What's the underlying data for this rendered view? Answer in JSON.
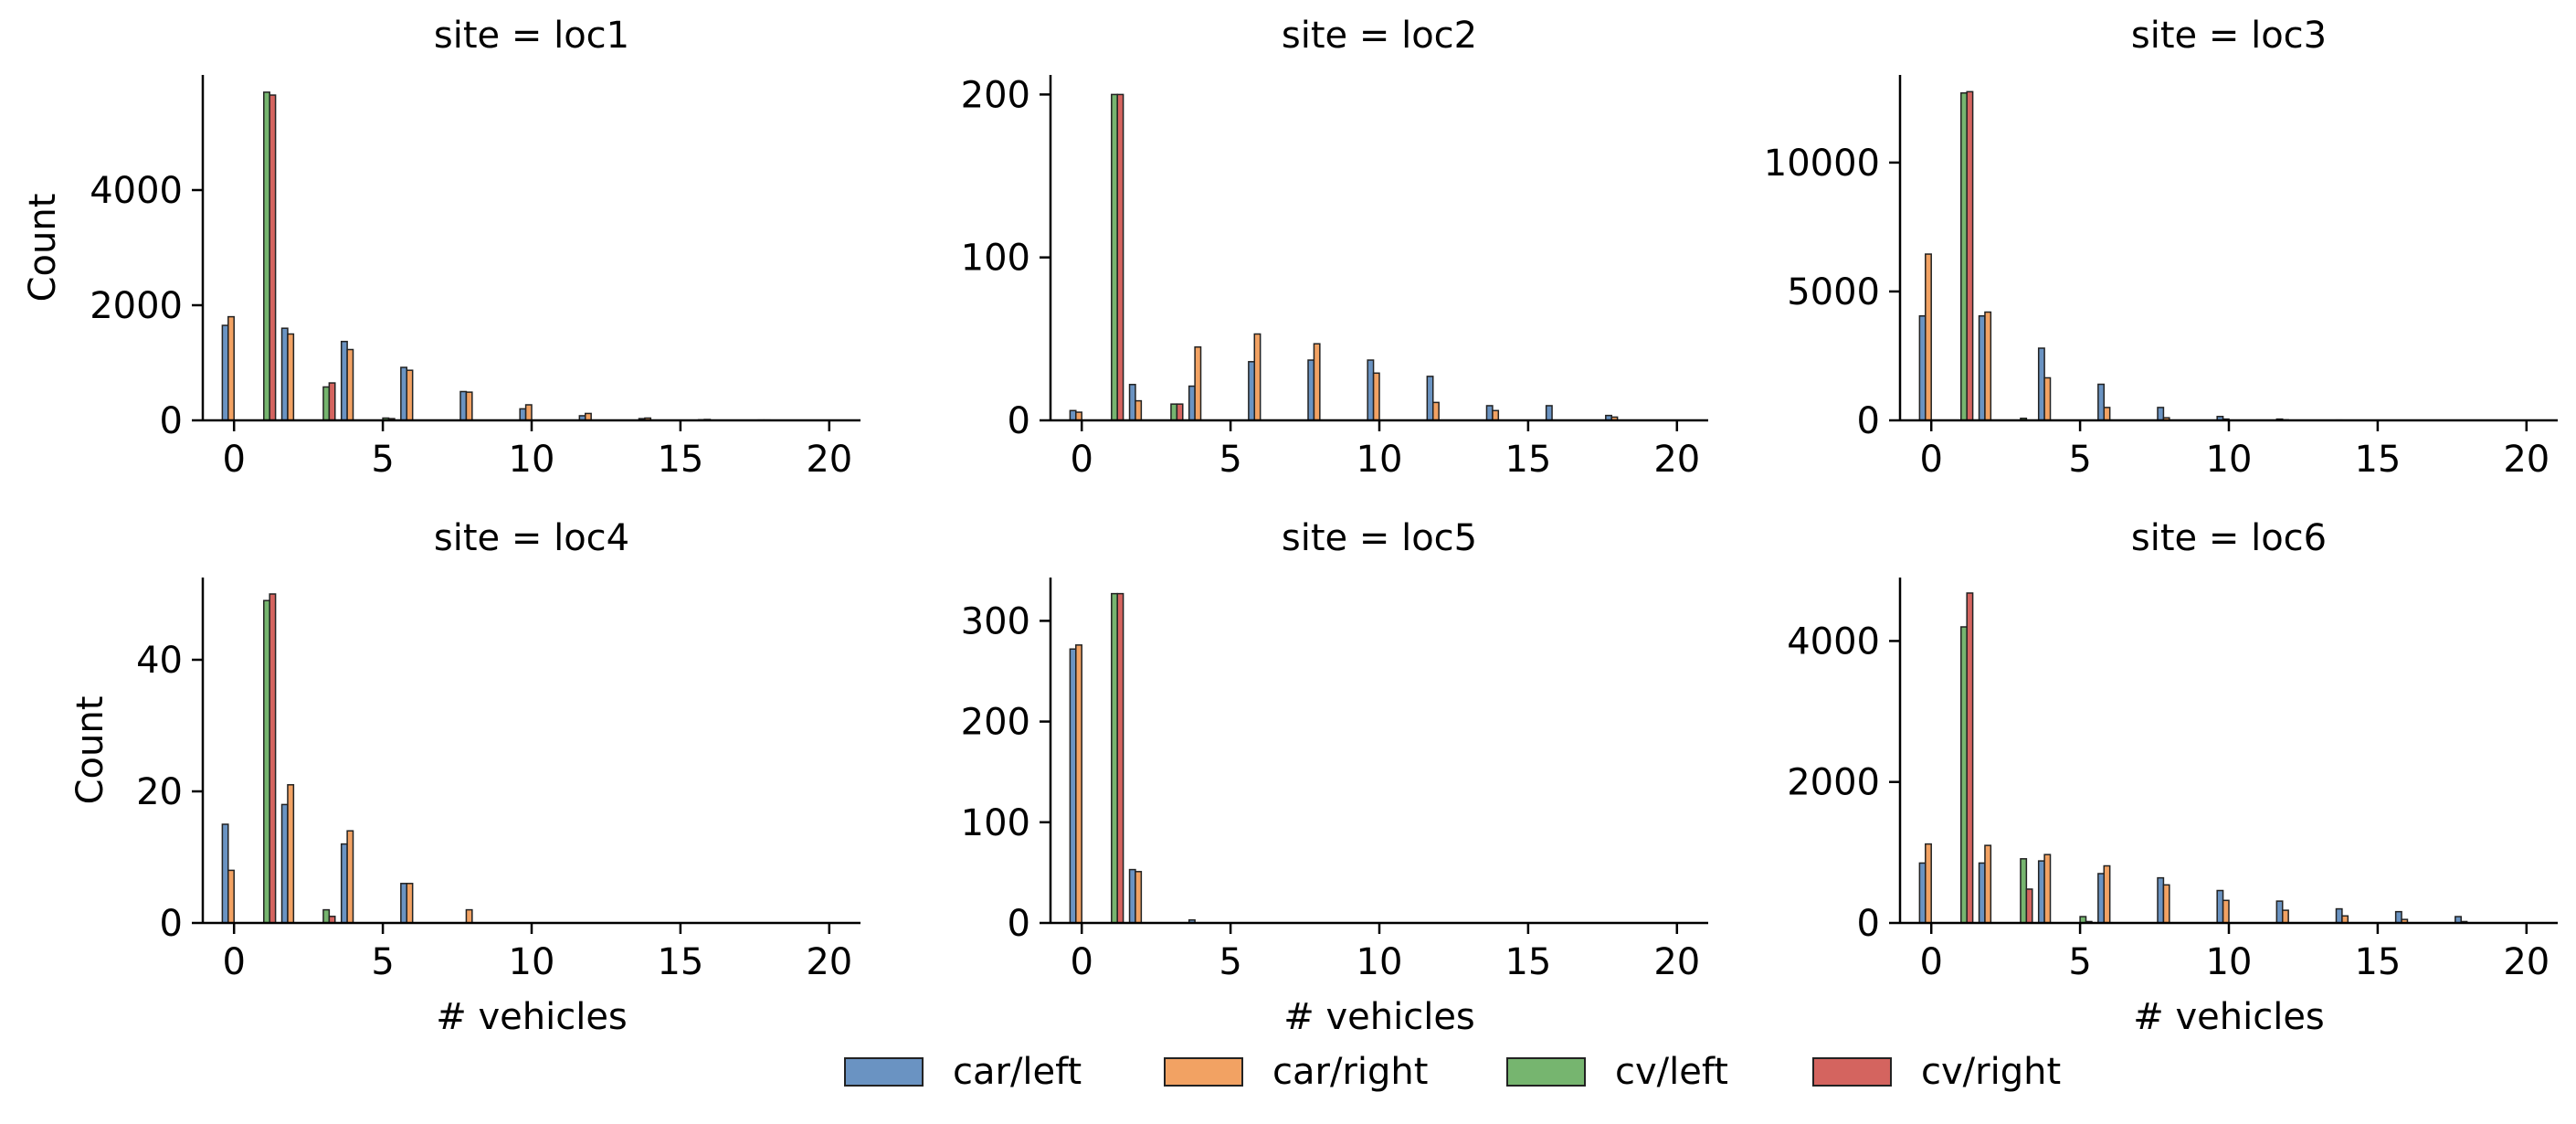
{
  "chart_data": {
    "type": "bar",
    "x_categories": [
      0,
      1,
      2,
      3,
      4,
      5,
      6,
      7,
      8,
      9,
      10,
      11,
      12,
      13,
      14,
      15,
      16,
      17,
      18,
      19,
      20
    ],
    "legend": {
      "placement": "bottom-center",
      "entries": [
        {
          "label": "car/left",
          "color": "#6a93c2"
        },
        {
          "label": "car/right",
          "color": "#f2a263"
        },
        {
          "label": "cv/left",
          "color": "#76b56f"
        },
        {
          "label": "cv/right",
          "color": "#d4645f"
        }
      ]
    },
    "xlabel": "# vehicles",
    "ylabel": "Count",
    "grid": false,
    "panels": [
      {
        "title": "site = loc1",
        "ylim": [
          0,
          6000
        ],
        "yticks": [
          0,
          2000,
          4000
        ],
        "series": [
          {
            "name": "car/left",
            "values": [
              1650,
              0,
              1600,
              0,
              1370,
              0,
              920,
              0,
              500,
              0,
              200,
              0,
              80,
              0,
              30,
              0,
              10,
              0,
              5,
              0,
              0
            ]
          },
          {
            "name": "car/right",
            "values": [
              1800,
              0,
              1500,
              0,
              1230,
              0,
              870,
              0,
              490,
              0,
              270,
              0,
              120,
              0,
              40,
              0,
              15,
              0,
              5,
              0,
              0
            ]
          },
          {
            "name": "cv/left",
            "values": [
              0,
              5700,
              0,
              580,
              0,
              40,
              0,
              0,
              0,
              0,
              0,
              0,
              0,
              0,
              0,
              0,
              0,
              0,
              0,
              0,
              0
            ]
          },
          {
            "name": "cv/right",
            "values": [
              0,
              5650,
              0,
              650,
              0,
              30,
              0,
              0,
              0,
              0,
              0,
              0,
              0,
              0,
              0,
              0,
              0,
              0,
              0,
              0,
              0
            ]
          }
        ]
      },
      {
        "title": "site = loc2",
        "ylim": [
          0,
          212
        ],
        "yticks": [
          0,
          100,
          200
        ],
        "series": [
          {
            "name": "car/left",
            "values": [
              6,
              0,
              22,
              0,
              21,
              0,
              36,
              0,
              37,
              0,
              37,
              0,
              27,
              0,
              9,
              0,
              9,
              0,
              3,
              0,
              0
            ]
          },
          {
            "name": "car/right",
            "values": [
              5,
              0,
              12,
              0,
              45,
              0,
              53,
              0,
              47,
              0,
              29,
              0,
              11,
              0,
              6,
              0,
              0,
              0,
              2,
              0,
              0
            ]
          },
          {
            "name": "cv/left",
            "values": [
              0,
              200,
              0,
              10,
              0,
              0,
              0,
              0,
              0,
              0,
              0,
              0,
              0,
              0,
              0,
              0,
              0,
              0,
              0,
              0,
              0
            ]
          },
          {
            "name": "cv/right",
            "values": [
              0,
              200,
              0,
              10,
              0,
              0,
              0,
              0,
              0,
              0,
              0,
              0,
              0,
              0,
              0,
              0,
              0,
              0,
              0,
              0,
              0
            ]
          }
        ]
      },
      {
        "title": "site = loc3",
        "ylim": [
          0,
          13400
        ],
        "yticks": [
          0,
          5000,
          10000
        ],
        "series": [
          {
            "name": "car/left",
            "values": [
              4050,
              0,
              4050,
              0,
              2800,
              0,
              1400,
              0,
              500,
              0,
              150,
              0,
              50,
              0,
              10,
              0,
              5,
              0,
              0,
              0,
              0
            ]
          },
          {
            "name": "car/right",
            "values": [
              6450,
              0,
              4200,
              0,
              1650,
              0,
              500,
              0,
              100,
              0,
              50,
              0,
              20,
              0,
              5,
              0,
              0,
              0,
              0,
              0,
              0
            ]
          },
          {
            "name": "cv/left",
            "values": [
              0,
              12700,
              0,
              80,
              0,
              0,
              0,
              0,
              0,
              0,
              0,
              0,
              0,
              0,
              0,
              0,
              0,
              0,
              0,
              0,
              0
            ]
          },
          {
            "name": "cv/right",
            "values": [
              0,
              12750,
              0,
              0,
              0,
              0,
              0,
              0,
              0,
              0,
              0,
              0,
              0,
              0,
              0,
              0,
              0,
              0,
              0,
              0,
              0
            ]
          }
        ]
      },
      {
        "title": "site = loc4",
        "ylim": [
          0,
          52.5
        ],
        "yticks": [
          0,
          20,
          40
        ],
        "series": [
          {
            "name": "car/left",
            "values": [
              15,
              0,
              18,
              0,
              12,
              0,
              6,
              0,
              0,
              0,
              0,
              0,
              0,
              0,
              0,
              0,
              0,
              0,
              0,
              0,
              0
            ]
          },
          {
            "name": "car/right",
            "values": [
              8,
              0,
              21,
              0,
              14,
              0,
              6,
              0,
              2,
              0,
              0,
              0,
              0,
              0,
              0,
              0,
              0,
              0,
              0,
              0,
              0
            ]
          },
          {
            "name": "cv/left",
            "values": [
              0,
              49,
              0,
              2,
              0,
              0,
              0,
              0,
              0,
              0,
              0,
              0,
              0,
              0,
              0,
              0,
              0,
              0,
              0,
              0,
              0
            ]
          },
          {
            "name": "cv/right",
            "values": [
              0,
              50,
              0,
              1,
              0,
              0,
              0,
              0,
              0,
              0,
              0,
              0,
              0,
              0,
              0,
              0,
              0,
              0,
              0,
              0,
              0
            ]
          }
        ]
      },
      {
        "title": "site = loc5",
        "ylim": [
          0,
          343
        ],
        "yticks": [
          0,
          100,
          200,
          300
        ],
        "series": [
          {
            "name": "car/left",
            "values": [
              272,
              0,
              53,
              0,
              3,
              0,
              0,
              0,
              0,
              0,
              0,
              0,
              0,
              0,
              0,
              0,
              0,
              0,
              0,
              0,
              0
            ]
          },
          {
            "name": "car/right",
            "values": [
              276,
              0,
              51,
              0,
              0,
              0,
              0,
              0,
              0,
              0,
              0,
              0,
              0,
              0,
              0,
              0,
              0,
              0,
              0,
              0,
              0
            ]
          },
          {
            "name": "cv/left",
            "values": [
              0,
              327,
              0,
              0,
              0,
              0,
              0,
              0,
              0,
              0,
              0,
              0,
              0,
              0,
              0,
              0,
              0,
              0,
              0,
              0,
              0
            ]
          },
          {
            "name": "cv/right",
            "values": [
              0,
              327,
              0,
              0,
              0,
              0,
              0,
              0,
              0,
              0,
              0,
              0,
              0,
              0,
              0,
              0,
              0,
              0,
              0,
              0,
              0
            ]
          }
        ]
      },
      {
        "title": "site = loc6",
        "ylim": [
          0,
          4900
        ],
        "yticks": [
          0,
          2000,
          4000
        ],
        "series": [
          {
            "name": "car/left",
            "values": [
              850,
              0,
              850,
              0,
              880,
              0,
              700,
              0,
              640,
              0,
              460,
              0,
              310,
              0,
              200,
              0,
              160,
              0,
              90,
              0,
              0
            ]
          },
          {
            "name": "car/right",
            "values": [
              1120,
              0,
              1100,
              0,
              970,
              0,
              810,
              0,
              540,
              0,
              320,
              0,
              180,
              0,
              100,
              0,
              50,
              0,
              20,
              0,
              0
            ]
          },
          {
            "name": "cv/left",
            "values": [
              0,
              4200,
              0,
              910,
              0,
              90,
              0,
              0,
              0,
              0,
              0,
              0,
              0,
              0,
              0,
              0,
              0,
              0,
              0,
              0,
              0
            ]
          },
          {
            "name": "cv/right",
            "values": [
              0,
              4680,
              0,
              480,
              0,
              20,
              0,
              0,
              0,
              0,
              0,
              0,
              0,
              0,
              0,
              0,
              0,
              0,
              0,
              0,
              0
            ]
          }
        ]
      }
    ]
  }
}
